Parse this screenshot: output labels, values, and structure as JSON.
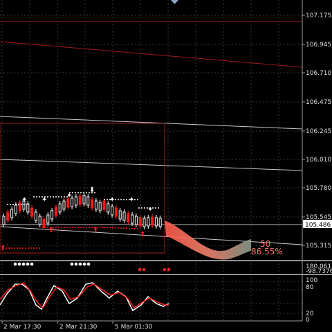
{
  "chart": {
    "main_axis_ticks": [
      "107.175",
      "106.945",
      "106.710",
      "106.475",
      "106.245",
      "106.010",
      "105.780",
      "105.545",
      "105.315"
    ],
    "current_price": "105.486",
    "forecast_count": "50",
    "forecast_percent": "86.55%"
  },
  "strip": {
    "labels": [
      "180.0613",
      "-98.7376"
    ]
  },
  "oscillator": {
    "ticks": [
      "100",
      "80",
      "20",
      "0"
    ]
  },
  "time_axis": {
    "labels": [
      "2 Mar 17:30",
      "2 Mar 21:30",
      "5 Mar 01:30"
    ]
  },
  "colors": {
    "background": "#000000",
    "grid": "#3a3a3a",
    "candle_up": "#ffffff",
    "candle_down": "#ff1a1a",
    "signal": "#ff2020",
    "forecast": "#f0826a",
    "oscillator_main": "#ffffff",
    "oscillator_signal": "#ff2020"
  }
}
